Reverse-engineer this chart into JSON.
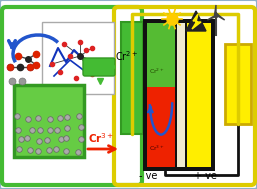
{
  "bg": "white",
  "outer_border_color": "#a0b8cc",
  "green_color": "#44bb33",
  "green_dark": "#339922",
  "yellow_color": "#ddcc00",
  "yellow_bright": "#ffee00",
  "black": "#111111",
  "red_color": "#ee2200",
  "blue_color": "#2255cc",
  "beaker_green": "#66cc44",
  "cell_left_green": "#55bb33",
  "cell_right_yellow": "#ffee00",
  "membrane_color": "#f0ead0",
  "mol_box_border": "#aaaaaa",
  "catalyst_gray": "#888888",
  "cr2_label": "Cr$^{2+}$",
  "cr3_label": "Cr$^{3+}$",
  "minus_ve": "- ve",
  "plus_ve": "+ ve"
}
